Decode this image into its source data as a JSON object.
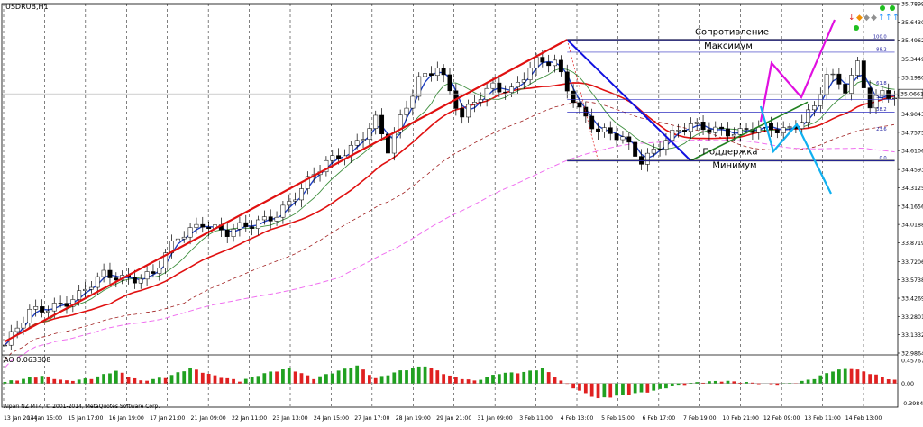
{
  "chart_data": [
    {
      "type": "candlestick",
      "symbol_label": "USDRUB,H1",
      "timeframe": "H1",
      "ylim": [
        32.9864,
        35.7899
      ],
      "price_axis_ticks": [
        "35.78990",
        "35.64305",
        "35.49620",
        "35.34490",
        "35.19805",
        "35.05120",
        "34.90435",
        "34.75750",
        "34.61065",
        "34.45935",
        "34.31250",
        "34.16565",
        "34.01880",
        "33.87195",
        "33.72065",
        "33.57380",
        "33.42695",
        "33.28010",
        "33.13325",
        "32.98640"
      ],
      "current_price_label": "35.06618",
      "current_price": 35.06618,
      "x_tick_labels": [
        "13 Jan 2014",
        "14 Jan 15:00",
        "15 Jan 17:00",
        "16 Jan 19:00",
        "17 Jan 21:00",
        "21 Jan 09:00",
        "22 Jan 11:00",
        "23 Jan 13:00",
        "24 Jan 15:00",
        "27 Jan 17:00",
        "28 Jan 19:00",
        "29 Jan 21:00",
        "31 Jan 09:00",
        "3 Feb 11:00",
        "4 Feb 13:00",
        "5 Feb 15:00",
        "6 Feb 17:00",
        "7 Feb 19:00",
        "10 Feb 21:00",
        "12 Feb 09:00",
        "13 Feb 11:00",
        "14 Feb 13:00"
      ],
      "price_anchors": [
        [
          0,
          33.05
        ],
        [
          4,
          33.3
        ],
        [
          8,
          33.38
        ],
        [
          12,
          33.45
        ],
        [
          16,
          33.6
        ],
        [
          20,
          33.6
        ],
        [
          24,
          33.62
        ],
        [
          28,
          33.9
        ],
        [
          32,
          34.05
        ],
        [
          36,
          33.95
        ],
        [
          40,
          34.0
        ],
        [
          44,
          34.12
        ],
        [
          48,
          34.3
        ],
        [
          52,
          34.5
        ],
        [
          56,
          34.65
        ],
        [
          60,
          34.85
        ],
        [
          62,
          34.6
        ],
        [
          64,
          34.85
        ],
        [
          67,
          35.2
        ],
        [
          70,
          35.3
        ],
        [
          74,
          34.85
        ],
        [
          76,
          35.0
        ],
        [
          79,
          35.15
        ],
        [
          82,
          35.1
        ],
        [
          86,
          35.3
        ],
        [
          89,
          35.32
        ],
        [
          93,
          34.95
        ],
        [
          96,
          34.75
        ],
        [
          100,
          34.7
        ],
        [
          103,
          34.55
        ],
        [
          107,
          34.7
        ],
        [
          111,
          34.8
        ],
        [
          115,
          34.8
        ],
        [
          119,
          34.75
        ],
        [
          123,
          34.78
        ],
        [
          127,
          34.8
        ],
        [
          131,
          34.95
        ],
        [
          133,
          35.2
        ],
        [
          136,
          35.1
        ],
        [
          138,
          35.32
        ],
        [
          140,
          35.0
        ],
        [
          142,
          35.08
        ],
        [
          144,
          35.02
        ]
      ],
      "fibonacci": {
        "levels": [
          {
            "label": "100.0",
            "price": 35.5
          },
          {
            "label": "88.2",
            "price": 35.4
          },
          {
            "label": "61.8",
            "price": 35.13
          },
          {
            "label": "50.0",
            "price": 35.02
          },
          {
            "label": "38.2",
            "price": 34.92
          },
          {
            "label": "23.6",
            "price": 34.76
          },
          {
            "label": "0.0",
            "price": 34.53
          }
        ]
      },
      "annotations": [
        "Сопротивление",
        "Максимум",
        "Поддержка",
        "Минимум"
      ],
      "colors": {
        "up_trend_line": "#e01010",
        "down_trend_line": "#1010e0",
        "support_line": "#208020",
        "resistance_line": "#000000",
        "fib_lines": "#3030c0",
        "bullish_scenario": "#e010e0",
        "bearish_scenario": "#10b0f0",
        "ma_fast": "#2040c0",
        "ma_mid": "#409040",
        "ma_slow": "#e01010",
        "ma_dashed": "#a02020",
        "ma_long": "#f070f0"
      }
    },
    {
      "type": "histogram",
      "indicator_label": "AO 0.063308",
      "axis_labels": [
        "0.457676",
        "0.00",
        "-0.398448"
      ],
      "ylim": [
        -0.398448,
        0.457676
      ],
      "anchors": [
        [
          0,
          0.03
        ],
        [
          6,
          0.15
        ],
        [
          10,
          0.05
        ],
        [
          14,
          0.1
        ],
        [
          18,
          0.25
        ],
        [
          22,
          0.05
        ],
        [
          26,
          0.12
        ],
        [
          30,
          0.3
        ],
        [
          34,
          0.15
        ],
        [
          38,
          0.05
        ],
        [
          42,
          0.2
        ],
        [
          46,
          0.3
        ],
        [
          50,
          0.1
        ],
        [
          54,
          0.25
        ],
        [
          57,
          0.35
        ],
        [
          60,
          0.1
        ],
        [
          64,
          0.25
        ],
        [
          68,
          0.35
        ],
        [
          72,
          0.15
        ],
        [
          76,
          0.05
        ],
        [
          80,
          0.2
        ],
        [
          84,
          0.22
        ],
        [
          87,
          0.3
        ],
        [
          90,
          0.05
        ],
        [
          93,
          -0.15
        ],
        [
          96,
          -0.3
        ],
        [
          99,
          -0.25
        ],
        [
          102,
          -0.2
        ],
        [
          105,
          -0.15
        ],
        [
          108,
          -0.05
        ],
        [
          112,
          0.02
        ],
        [
          116,
          0.05
        ],
        [
          120,
          0.02
        ],
        [
          124,
          -0.02
        ],
        [
          128,
          0.01
        ],
        [
          131,
          0.1
        ],
        [
          134,
          0.25
        ],
        [
          137,
          0.3
        ],
        [
          140,
          0.2
        ],
        [
          144,
          0.063
        ]
      ],
      "colors": {
        "up": "#20a020",
        "down": "#e02020"
      }
    }
  ],
  "footer": {
    "copyright": "Alpari NZ MT4, © 2001-2014, MetaQuotes Software Corp."
  }
}
